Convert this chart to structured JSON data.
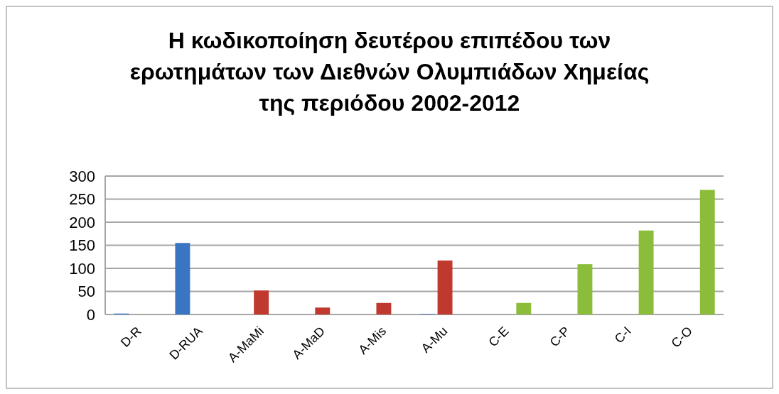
{
  "chart_data": {
    "type": "bar",
    "title": "Η κωδικοποίηση δευτέρου επιπέδου των ερωτημάτων των Διεθνών Ολυμπιάδων Χημείας της περιόδου 2002-2012",
    "categories": [
      "D-R",
      "D-RUA",
      "A-MaMi",
      "A-MaD",
      "A-Mis",
      "A-Mu",
      "C-E",
      "C-P",
      "C-I",
      "C-O"
    ],
    "series": [
      {
        "color": "#3a75c4",
        "values": [
          2,
          155,
          null,
          null,
          null,
          1,
          null,
          null,
          null,
          null
        ]
      },
      {
        "color": "#c0392f",
        "values": [
          null,
          null,
          52,
          15,
          25,
          117,
          null,
          null,
          null,
          null
        ]
      },
      {
        "color": "#8cbd3a",
        "values": [
          null,
          null,
          null,
          null,
          null,
          null,
          25,
          109,
          182,
          270
        ]
      }
    ],
    "ylim": [
      0,
      300
    ],
    "yticks": [
      0,
      50,
      100,
      150,
      200,
      250,
      300
    ],
    "grid": "y"
  }
}
